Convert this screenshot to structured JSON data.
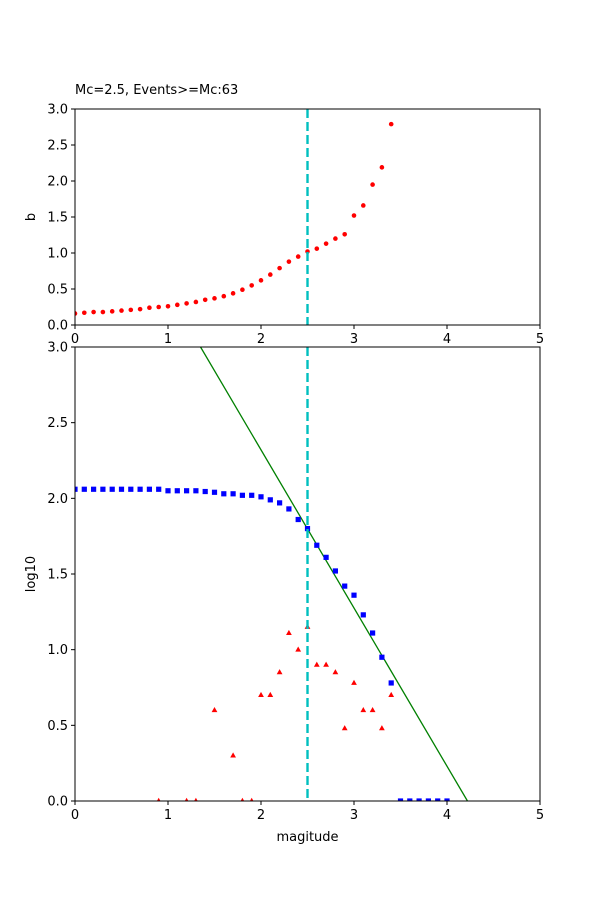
{
  "chart_data": [
    {
      "type": "scatter",
      "title": "Mc=2.5, Events>=Mc:63",
      "xlabel": "",
      "ylabel": "b",
      "xlim": [
        0,
        5
      ],
      "ylim": [
        0,
        3
      ],
      "xticks": [
        "0",
        "1",
        "2",
        "3",
        "4",
        "5"
      ],
      "yticks": [
        "0.0",
        "0.5",
        "1.0",
        "1.5",
        "2.0",
        "2.5",
        "3.0"
      ],
      "grid": false,
      "vline": {
        "x": 2.5,
        "color": "#00bfbf",
        "style": "dashed"
      },
      "series": [
        {
          "marker": "circle",
          "color": "#ff0000",
          "points": [
            [
              0.0,
              0.16
            ],
            [
              0.1,
              0.17
            ],
            [
              0.2,
              0.18
            ],
            [
              0.3,
              0.18
            ],
            [
              0.4,
              0.19
            ],
            [
              0.5,
              0.2
            ],
            [
              0.6,
              0.21
            ],
            [
              0.7,
              0.22
            ],
            [
              0.8,
              0.24
            ],
            [
              0.9,
              0.25
            ],
            [
              1.0,
              0.26
            ],
            [
              1.1,
              0.28
            ],
            [
              1.2,
              0.3
            ],
            [
              1.3,
              0.32
            ],
            [
              1.4,
              0.35
            ],
            [
              1.5,
              0.37
            ],
            [
              1.6,
              0.4
            ],
            [
              1.7,
              0.44
            ],
            [
              1.8,
              0.49
            ],
            [
              1.9,
              0.55
            ],
            [
              2.0,
              0.62
            ],
            [
              2.1,
              0.7
            ],
            [
              2.2,
              0.79
            ],
            [
              2.3,
              0.88
            ],
            [
              2.4,
              0.95
            ],
            [
              2.5,
              1.02
            ],
            [
              2.6,
              1.06
            ],
            [
              2.7,
              1.13
            ],
            [
              2.8,
              1.2
            ],
            [
              2.9,
              1.26
            ],
            [
              3.0,
              1.52
            ],
            [
              3.1,
              1.66
            ],
            [
              3.2,
              1.95
            ],
            [
              3.3,
              2.19
            ],
            [
              3.4,
              2.79
            ]
          ]
        }
      ]
    },
    {
      "type": "scatter",
      "title": "",
      "xlabel": "magitude",
      "ylabel": "log10",
      "xlim": [
        0,
        5
      ],
      "ylim": [
        0,
        3
      ],
      "xticks": [
        "0",
        "1",
        "2",
        "3",
        "4",
        "5"
      ],
      "yticks": [
        "0.0",
        "0.5",
        "1.0",
        "1.5",
        "2.0",
        "2.5",
        "3.0"
      ],
      "grid": false,
      "vline": {
        "x": 2.5,
        "color": "#00bfbf",
        "style": "dashed"
      },
      "fit_line": {
        "color": "#008000",
        "points": [
          [
            1.35,
            3.0
          ],
          [
            4.22,
            0.0
          ]
        ]
      },
      "series": [
        {
          "marker": "square",
          "color": "#0000ff",
          "points": [
            [
              0.0,
              2.06
            ],
            [
              0.1,
              2.06
            ],
            [
              0.2,
              2.06
            ],
            [
              0.3,
              2.06
            ],
            [
              0.4,
              2.06
            ],
            [
              0.5,
              2.06
            ],
            [
              0.6,
              2.06
            ],
            [
              0.7,
              2.06
            ],
            [
              0.8,
              2.06
            ],
            [
              0.9,
              2.06
            ],
            [
              1.0,
              2.05
            ],
            [
              1.1,
              2.05
            ],
            [
              1.2,
              2.05
            ],
            [
              1.3,
              2.05
            ],
            [
              1.4,
              2.045
            ],
            [
              1.5,
              2.04
            ],
            [
              1.6,
              2.03
            ],
            [
              1.7,
              2.03
            ],
            [
              1.8,
              2.02
            ],
            [
              1.9,
              2.02
            ],
            [
              2.0,
              2.01
            ],
            [
              2.1,
              1.99
            ],
            [
              2.2,
              1.97
            ],
            [
              2.3,
              1.93
            ],
            [
              2.4,
              1.86
            ],
            [
              2.5,
              1.8
            ],
            [
              2.6,
              1.69
            ],
            [
              2.7,
              1.61
            ],
            [
              2.8,
              1.52
            ],
            [
              2.9,
              1.42
            ],
            [
              3.0,
              1.36
            ],
            [
              3.1,
              1.23
            ],
            [
              3.2,
              1.11
            ],
            [
              3.3,
              0.95
            ],
            [
              3.4,
              0.78
            ],
            [
              3.5,
              0.0
            ],
            [
              3.6,
              0.0
            ],
            [
              3.7,
              0.0
            ],
            [
              3.8,
              0.0
            ],
            [
              3.9,
              0.0
            ],
            [
              4.0,
              0.0
            ]
          ]
        },
        {
          "marker": "triangle",
          "color": "#ff0000",
          "points": [
            [
              0.9,
              0.0
            ],
            [
              1.2,
              0.0
            ],
            [
              1.3,
              0.0
            ],
            [
              1.5,
              0.6
            ],
            [
              1.7,
              0.3
            ],
            [
              1.8,
              0.0
            ],
            [
              1.9,
              0.0
            ],
            [
              2.0,
              0.7
            ],
            [
              2.1,
              0.7
            ],
            [
              2.2,
              0.85
            ],
            [
              2.3,
              1.11
            ],
            [
              2.4,
              1.0
            ],
            [
              2.5,
              1.15
            ],
            [
              2.6,
              0.9
            ],
            [
              2.7,
              0.9
            ],
            [
              2.8,
              0.85
            ],
            [
              2.9,
              0.48
            ],
            [
              3.0,
              0.78
            ],
            [
              3.1,
              0.6
            ],
            [
              3.2,
              0.6
            ],
            [
              3.3,
              0.48
            ],
            [
              3.4,
              0.7
            ]
          ]
        }
      ]
    }
  ]
}
